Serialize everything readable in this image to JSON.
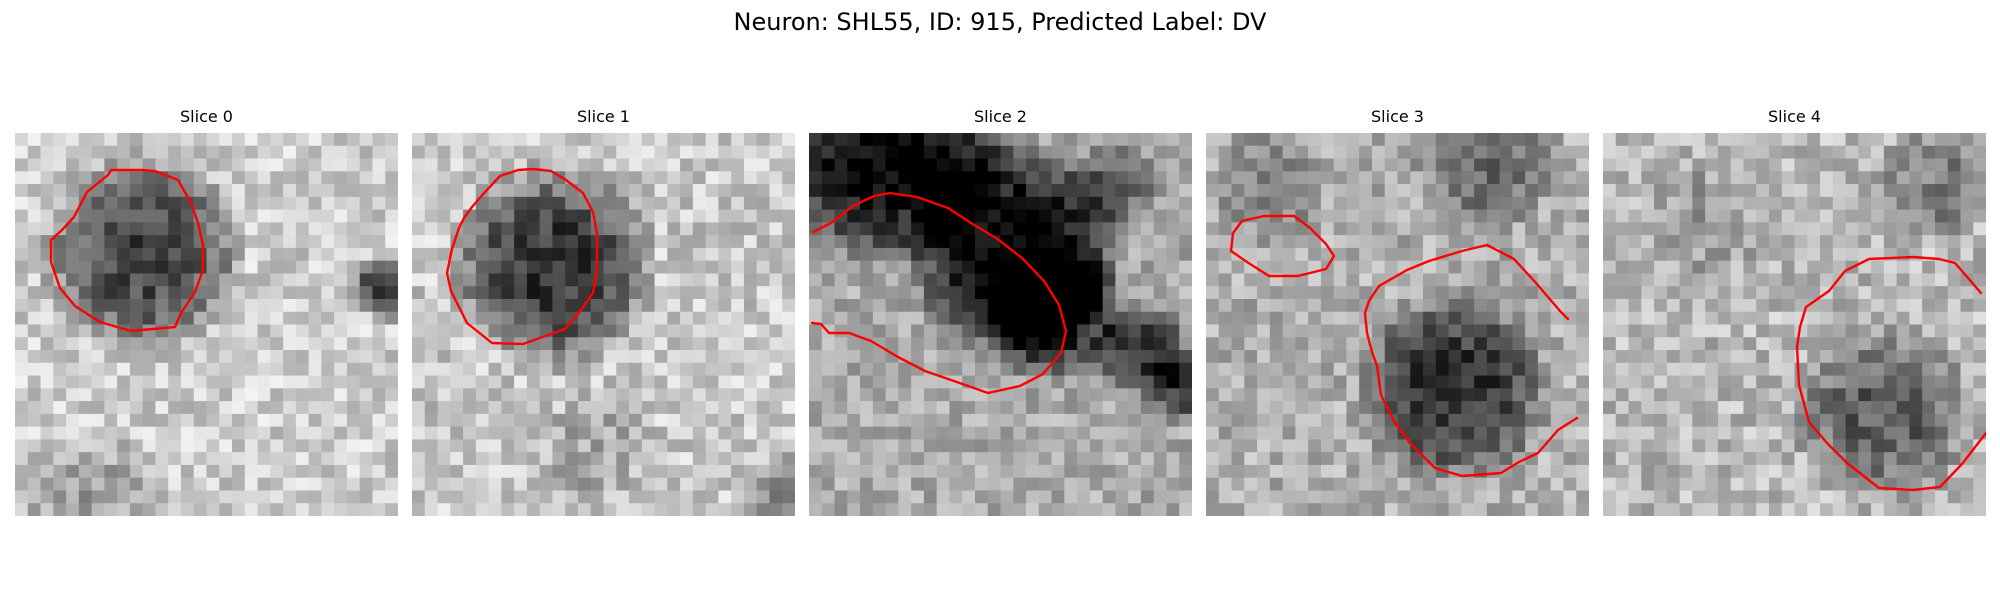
{
  "figure": {
    "title": "Neuron: SHL55, ID: 915, Predicted Label: DV"
  },
  "overlay_color": "#ff0000",
  "panels": [
    {
      "title": "Slice 0"
    },
    {
      "title": "Slice 1"
    },
    {
      "title": "Slice 2"
    },
    {
      "title": "Slice 3"
    },
    {
      "title": "Slice 4"
    }
  ]
}
